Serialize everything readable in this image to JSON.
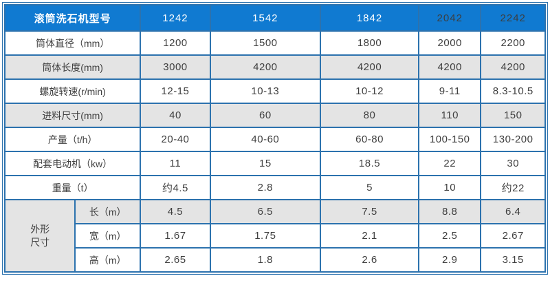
{
  "table": {
    "header": {
      "label": "滚筒洗石机型号",
      "models": [
        {
          "label": "1242",
          "dark": false
        },
        {
          "label": "1542",
          "dark": false
        },
        {
          "label": "1842",
          "dark": false
        },
        {
          "label": "2042",
          "dark": true
        },
        {
          "label": "2242",
          "dark": true
        }
      ]
    },
    "rows": [
      {
        "label": "筒体直径（mm）",
        "shaded": false,
        "values": [
          "1200",
          "1500",
          "1800",
          "2000",
          "2200"
        ]
      },
      {
        "label": "筒体长度(mm)",
        "shaded": true,
        "values": [
          "3000",
          "4200",
          "4200",
          "4200",
          "4200"
        ]
      },
      {
        "label": "螺旋转速(r/min)",
        "shaded": false,
        "values": [
          "12-15",
          "10-13",
          "10-12",
          "9-11",
          "8.3-10.5"
        ]
      },
      {
        "label": "进料尺寸(mm)",
        "shaded": true,
        "values": [
          "40",
          "60",
          "80",
          "110",
          "150"
        ]
      },
      {
        "label": "产量（t/h）",
        "shaded": false,
        "values": [
          "20-40",
          "40-60",
          "60-80",
          "100-150",
          "130-200"
        ]
      },
      {
        "label": "配套电动机（kw）",
        "shaded": false,
        "values": [
          "11",
          "15",
          "18.5",
          "22",
          "30"
        ]
      },
      {
        "label": "重量（t）",
        "shaded": false,
        "values": [
          "约4.5",
          "2.8",
          "5",
          "10",
          "约22"
        ]
      }
    ],
    "dimension_group": {
      "label": "外形\n尺寸",
      "rows": [
        {
          "label": "长（m）",
          "shaded": true,
          "values": [
            "4.5",
            "6.5",
            "7.5",
            "8.8",
            "6.4"
          ]
        },
        {
          "label": "宽（m）",
          "shaded": false,
          "values": [
            "1.67",
            "1.75",
            "2.1",
            "2.5",
            "2.67"
          ]
        },
        {
          "label": "高（m）",
          "shaded": false,
          "values": [
            "2.65",
            "1.8",
            "2.6",
            "2.9",
            "3.15"
          ]
        }
      ]
    }
  },
  "colors": {
    "header_bg": "#107ad1",
    "header_text": "#ffffff",
    "header_text_dark": "#3c3e40",
    "border": "#2c72ae",
    "shaded_row": "#e4e4e4",
    "text": "#3f3f3f"
  },
  "column_widths_percent": [
    13.0,
    12.1,
    12.9,
    20.4,
    18.2,
    11.5,
    11.9
  ]
}
